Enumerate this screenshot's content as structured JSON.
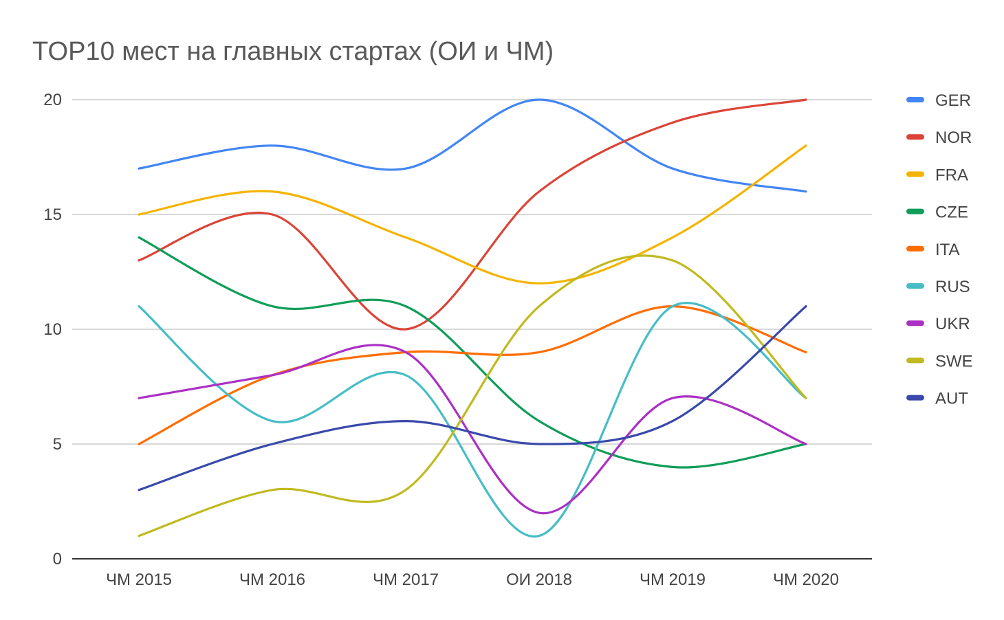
{
  "chart_data": {
    "type": "line",
    "title": "TOP10 мест на главных стартах (ОИ и ЧМ)",
    "xlabel": "",
    "ylabel": "",
    "ylim": [
      0,
      20
    ],
    "yticks": [
      "0",
      "5",
      "10",
      "15",
      "20"
    ],
    "categories": [
      "ЧМ 2015",
      "ЧМ 2016",
      "ЧМ 2017",
      "ОИ 2018",
      "ЧМ 2019",
      "ЧМ 2020"
    ],
    "grid": true,
    "smooth": true,
    "legend_position": "right",
    "series": [
      {
        "name": "GER",
        "color": "#4285f4",
        "values": [
          17,
          18,
          17,
          20,
          17,
          16
        ]
      },
      {
        "name": "NOR",
        "color": "#db4437",
        "values": [
          13,
          15,
          10,
          16,
          19,
          20
        ]
      },
      {
        "name": "FRA",
        "color": "#f4b400",
        "values": [
          15,
          16,
          14,
          12,
          14,
          18
        ]
      },
      {
        "name": "CZE",
        "color": "#0f9d58",
        "values": [
          14,
          11,
          11,
          6,
          4,
          5
        ]
      },
      {
        "name": "ITA",
        "color": "#ff6d00",
        "values": [
          5,
          8,
          9,
          9,
          11,
          9
        ]
      },
      {
        "name": "RUS",
        "color": "#46bdc6",
        "values": [
          11,
          6,
          8,
          1,
          11,
          7
        ]
      },
      {
        "name": "UKR",
        "color": "#ab30c4",
        "values": [
          7,
          8,
          9,
          2,
          7,
          5
        ]
      },
      {
        "name": "SWE",
        "color": "#c0ba1f",
        "values": [
          1,
          3,
          3,
          11,
          13,
          7
        ]
      },
      {
        "name": "AUT",
        "color": "#3949ab",
        "values": [
          3,
          5,
          6,
          5,
          6,
          11
        ]
      }
    ]
  }
}
